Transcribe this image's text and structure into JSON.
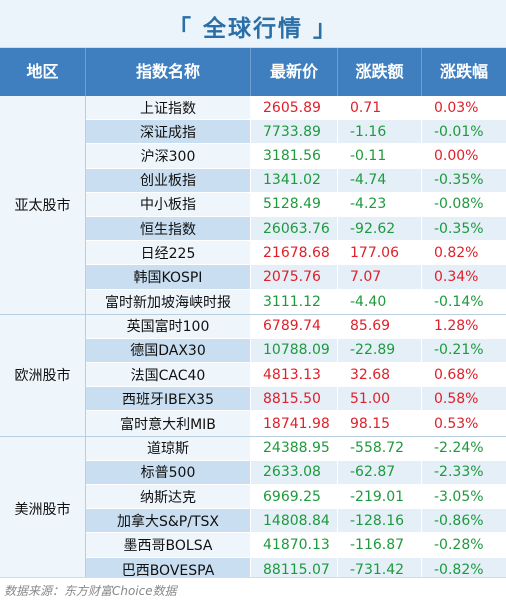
{
  "title": "「 全球行情 」",
  "headers": {
    "region": "地区",
    "name": "指数名称",
    "price": "最新价",
    "change": "涨跌额",
    "pct": "涨跌幅"
  },
  "colors": {
    "up": "#e0202a",
    "down": "#1e9a3c",
    "header_bg": "#3f7fbf",
    "title": "#2a6fa8"
  },
  "groups": [
    {
      "region": "亚太股市",
      "rows": [
        {
          "name": "上证指数",
          "price": "2605.89",
          "change": "0.71",
          "pct": "0.03%",
          "dir": "up"
        },
        {
          "name": "深证成指",
          "price": "7733.89",
          "change": "-1.16",
          "pct": "-0.01%",
          "dir": "down"
        },
        {
          "name": "沪深300",
          "price": "3181.56",
          "change": "-0.11",
          "pct": "0.00%",
          "dir": "mixed"
        },
        {
          "name": "创业板指",
          "price": "1341.02",
          "change": "-4.74",
          "pct": "-0.35%",
          "dir": "down"
        },
        {
          "name": "中小板指",
          "price": "5128.49",
          "change": "-4.23",
          "pct": "-0.08%",
          "dir": "down"
        },
        {
          "name": "恒生指数",
          "price": "26063.76",
          "change": "-92.62",
          "pct": "-0.35%",
          "dir": "down"
        },
        {
          "name": "日经225",
          "price": "21678.68",
          "change": "177.06",
          "pct": "0.82%",
          "dir": "up"
        },
        {
          "name": "韩国KOSPI",
          "price": "2075.76",
          "change": "7.07",
          "pct": "0.34%",
          "dir": "up"
        },
        {
          "name": "富时新加坡海峡时报",
          "price": "3111.12",
          "change": "-4.40",
          "pct": "-0.14%",
          "dir": "down"
        }
      ]
    },
    {
      "region": "欧洲股市",
      "rows": [
        {
          "name": "英国富时100",
          "price": "6789.74",
          "change": "85.69",
          "pct": "1.28%",
          "dir": "up"
        },
        {
          "name": "德国DAX30",
          "price": "10788.09",
          "change": "-22.89",
          "pct": "-0.21%",
          "dir": "down"
        },
        {
          "name": "法国CAC40",
          "price": "4813.13",
          "change": "32.68",
          "pct": "0.68%",
          "dir": "up"
        },
        {
          "name": "西班牙IBEX35",
          "price": "8815.50",
          "change": "51.00",
          "pct": "0.58%",
          "dir": "up"
        },
        {
          "name": "富时意大利MIB",
          "price": "18741.98",
          "change": "98.15",
          "pct": "0.53%",
          "dir": "up"
        }
      ]
    },
    {
      "region": "美洲股市",
      "rows": [
        {
          "name": "道琼斯",
          "price": "24388.95",
          "change": "-558.72",
          "pct": "-2.24%",
          "dir": "down"
        },
        {
          "name": "标普500",
          "price": "2633.08",
          "change": "-62.87",
          "pct": "-2.33%",
          "dir": "down"
        },
        {
          "name": "纳斯达克",
          "price": "6969.25",
          "change": "-219.01",
          "pct": "-3.05%",
          "dir": "down"
        },
        {
          "name": "加拿大S&P/TSX",
          "price": "14808.84",
          "change": "-128.16",
          "pct": "-0.86%",
          "dir": "down"
        },
        {
          "name": "墨西哥BOLSA",
          "price": "41870.13",
          "change": "-116.87",
          "pct": "-0.28%",
          "dir": "down"
        },
        {
          "name": "巴西BOVESPA",
          "price": "88115.07",
          "change": "-731.42",
          "pct": "-0.82%",
          "dir": "down"
        }
      ]
    }
  ],
  "footer": "数据来源：东方财富Choice数据"
}
